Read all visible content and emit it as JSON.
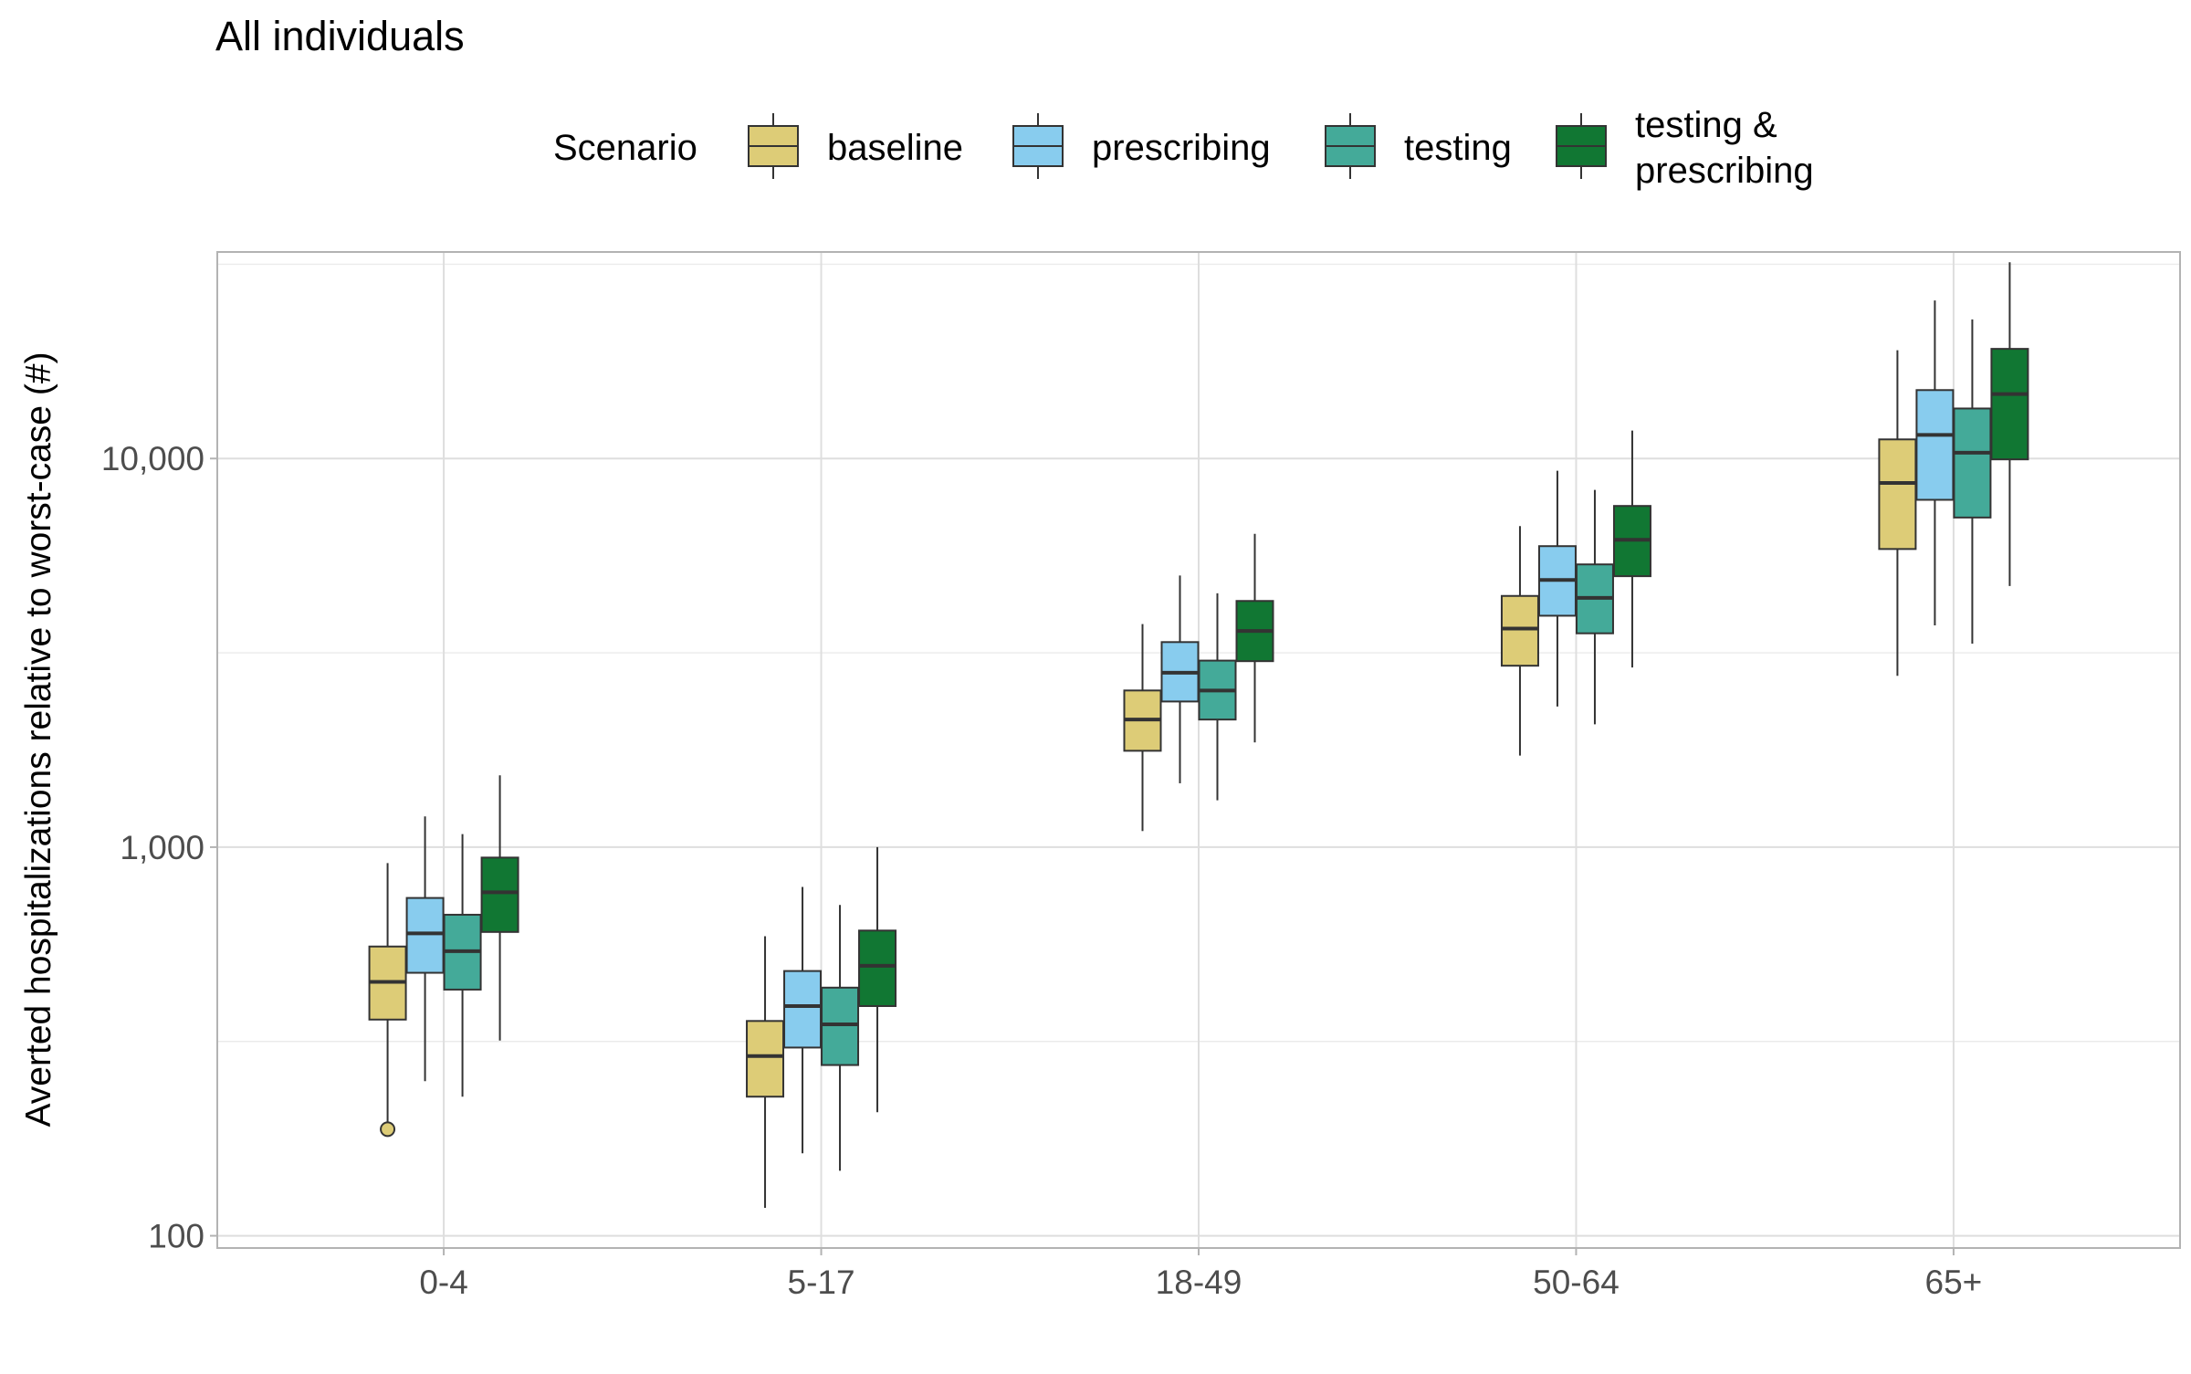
{
  "chart_data": {
    "type": "boxplot",
    "title": "All individuals",
    "legend": {
      "title": "Scenario",
      "position": "top",
      "entries": [
        {
          "key": "baseline",
          "label": "baseline",
          "lines": [
            "baseline"
          ],
          "color": "#DDCC77"
        },
        {
          "key": "prescribing",
          "label": "prescribing",
          "lines": [
            "prescribing"
          ],
          "color": "#88CCEE"
        },
        {
          "key": "testing",
          "label": "testing",
          "lines": [
            "testing"
          ],
          "color": "#44AA99"
        },
        {
          "key": "testing_prescribing",
          "label": "testing & prescribing",
          "lines": [
            "testing &",
            "prescribing"
          ],
          "color": "#117733"
        }
      ]
    },
    "xlabel": "",
    "ylabel": "Averted hospitalizations relative to worst-case (#)",
    "yscale": "log10",
    "ylim": [
      93,
      34000
    ],
    "yticks": [
      {
        "value": 100,
        "label": "100"
      },
      {
        "value": 1000,
        "label": "1,000"
      },
      {
        "value": 10000,
        "label": "10,000"
      }
    ],
    "categories": [
      "0-4",
      "5-17",
      "18-49",
      "50-64",
      "65+"
    ],
    "grid": true,
    "series": [
      {
        "name": "baseline",
        "color": "#DDCC77",
        "boxes": [
          {
            "category": "0-4",
            "whisker_low": 188,
            "q1": 360,
            "median": 450,
            "q3": 555,
            "whisker_high": 910,
            "outliers": [
              188
            ]
          },
          {
            "category": "5-17",
            "whisker_low": 118,
            "q1": 228,
            "median": 290,
            "q3": 357,
            "whisker_high": 590,
            "outliers": []
          },
          {
            "category": "18-49",
            "whisker_low": 1100,
            "q1": 1770,
            "median": 2130,
            "q3": 2530,
            "whisker_high": 3750,
            "outliers": []
          },
          {
            "category": "50-64",
            "whisker_low": 1720,
            "q1": 2930,
            "median": 3650,
            "q3": 4430,
            "whisker_high": 6700,
            "outliers": []
          },
          {
            "category": "65+",
            "whisker_low": 2760,
            "q1": 5850,
            "median": 8650,
            "q3": 11200,
            "whisker_high": 19000,
            "outliers": []
          }
        ]
      },
      {
        "name": "prescribing",
        "color": "#88CCEE",
        "boxes": [
          {
            "category": "0-4",
            "whisker_low": 250,
            "q1": 475,
            "median": 600,
            "q3": 740,
            "whisker_high": 1200,
            "outliers": []
          },
          {
            "category": "5-17",
            "whisker_low": 163,
            "q1": 305,
            "median": 390,
            "q3": 480,
            "whisker_high": 790,
            "outliers": []
          },
          {
            "category": "18-49",
            "whisker_low": 1460,
            "q1": 2370,
            "median": 2810,
            "q3": 3370,
            "whisker_high": 5000,
            "outliers": []
          },
          {
            "category": "50-64",
            "whisker_low": 2300,
            "q1": 3940,
            "median": 4870,
            "q3": 5950,
            "whisker_high": 9300,
            "outliers": []
          },
          {
            "category": "65+",
            "whisker_low": 3720,
            "q1": 7830,
            "median": 11500,
            "q3": 15000,
            "whisker_high": 25500,
            "outliers": []
          }
        ]
      },
      {
        "name": "testing",
        "color": "#44AA99",
        "boxes": [
          {
            "category": "0-4",
            "whisker_low": 228,
            "q1": 430,
            "median": 540,
            "q3": 670,
            "whisker_high": 1080,
            "outliers": []
          },
          {
            "category": "5-17",
            "whisker_low": 147,
            "q1": 275,
            "median": 350,
            "q3": 435,
            "whisker_high": 710,
            "outliers": []
          },
          {
            "category": "18-49",
            "whisker_low": 1320,
            "q1": 2130,
            "median": 2530,
            "q3": 3020,
            "whisker_high": 4500,
            "outliers": []
          },
          {
            "category": "50-64",
            "whisker_low": 2070,
            "q1": 3550,
            "median": 4380,
            "q3": 5340,
            "whisker_high": 8300,
            "outliers": []
          },
          {
            "category": "65+",
            "whisker_low": 3340,
            "q1": 7050,
            "median": 10350,
            "q3": 13450,
            "whisker_high": 22800,
            "outliers": []
          }
        ]
      },
      {
        "name": "testing & prescribing",
        "color": "#117733",
        "boxes": [
          {
            "category": "0-4",
            "whisker_low": 318,
            "q1": 605,
            "median": 765,
            "q3": 940,
            "whisker_high": 1530,
            "outliers": []
          },
          {
            "category": "5-17",
            "whisker_low": 208,
            "q1": 390,
            "median": 495,
            "q3": 610,
            "whisker_high": 1000,
            "outliers": []
          },
          {
            "category": "18-49",
            "whisker_low": 1860,
            "q1": 3010,
            "median": 3600,
            "q3": 4300,
            "whisker_high": 6400,
            "outliers": []
          },
          {
            "category": "50-64",
            "whisker_low": 2900,
            "q1": 4980,
            "median": 6180,
            "q3": 7550,
            "whisker_high": 11800,
            "outliers": []
          },
          {
            "category": "65+",
            "whisker_low": 4700,
            "q1": 9950,
            "median": 14650,
            "q3": 19150,
            "whisker_high": 32000,
            "outliers": []
          }
        ]
      }
    ]
  }
}
